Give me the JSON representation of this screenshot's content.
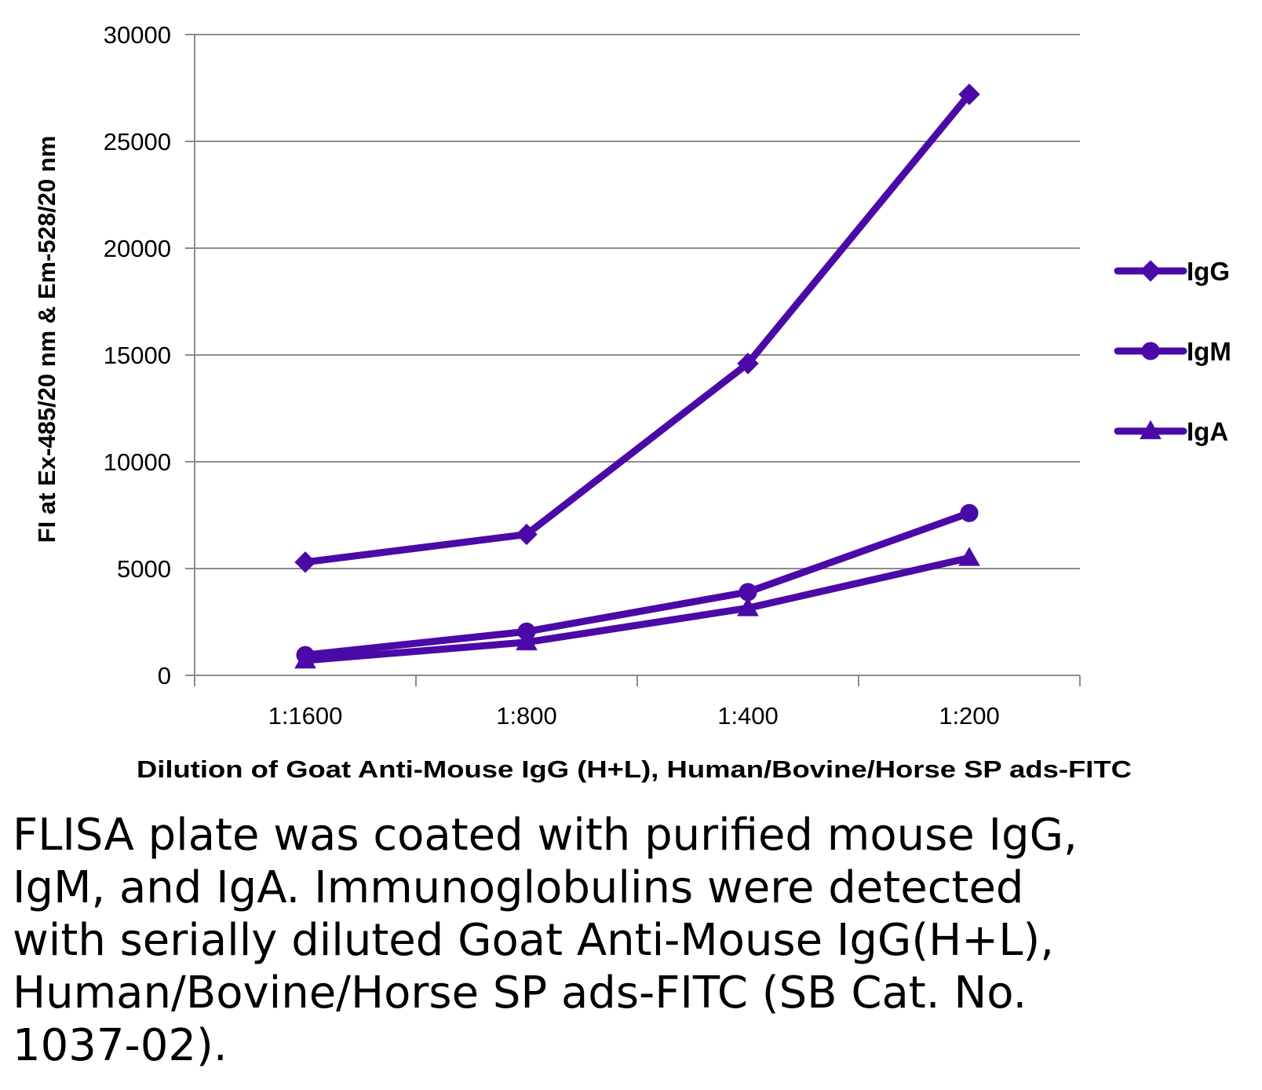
{
  "chart_data": {
    "type": "line",
    "categories": [
      "1:1600",
      "1:800",
      "1:400",
      "1:200"
    ],
    "series": [
      {
        "name": "IgG",
        "marker": "diamond",
        "values": [
          5300,
          6600,
          14600,
          27200
        ]
      },
      {
        "name": "IgM",
        "marker": "circle",
        "values": [
          950,
          2050,
          3900,
          7600
        ]
      },
      {
        "name": "IgA",
        "marker": "triangle",
        "values": [
          700,
          1550,
          3150,
          5500
        ]
      }
    ],
    "ylim": [
      0,
      30000
    ],
    "yticks": [
      0,
      5000,
      10000,
      15000,
      20000,
      25000,
      30000
    ],
    "xlabel": "Dilution of Goat Anti-Mouse IgG (H+L), Human/Bovine/Horse SP ads-FITC",
    "ylabel": "FI at Ex-485/20 nm & Em-528/20 nm",
    "grid": true,
    "legend_position": "right",
    "line_color": "#4B0AA8"
  },
  "caption": "FLISA plate was coated with purified mouse IgG,\nIgM, and IgA.  Immunoglobulins were detected\nwith serially diluted Goat Anti-Mouse IgG(H+L),\nHuman/Bovine/Horse SP ads-FITC (SB Cat. No.\n1037-02)."
}
